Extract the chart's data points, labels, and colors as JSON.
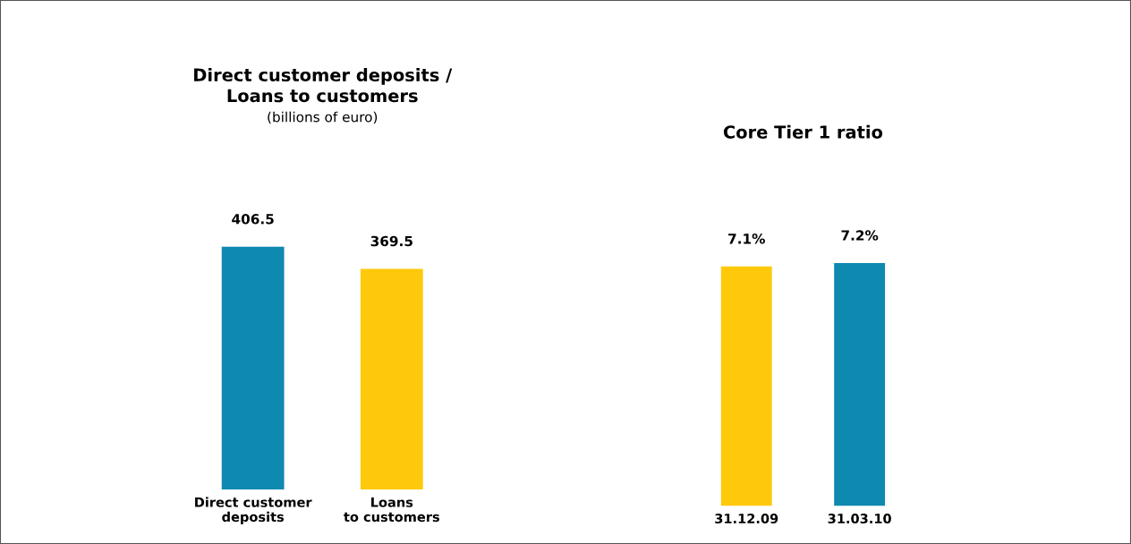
{
  "chart_data": [
    {
      "type": "bar",
      "title": "Direct customer deposits /\nLoans to customers",
      "subtitle": "(billions of euro)",
      "categories": [
        "Direct customer\ndeposits",
        "Loans\nto customers"
      ],
      "values": [
        406.5,
        369.5
      ],
      "colors": [
        "#0e89b0",
        "#fec90b"
      ],
      "data_labels": true,
      "grid": false,
      "legend": false
    },
    {
      "type": "bar",
      "title": "Core Tier 1 ratio",
      "categories": [
        "31.12.09",
        "31.03.10"
      ],
      "values": [
        7.1,
        7.2
      ],
      "colors": [
        "#fec90b",
        "#0e89b0"
      ],
      "value_labels": [
        "7.1%",
        "7.2%"
      ],
      "grid": false,
      "legend": false
    }
  ]
}
